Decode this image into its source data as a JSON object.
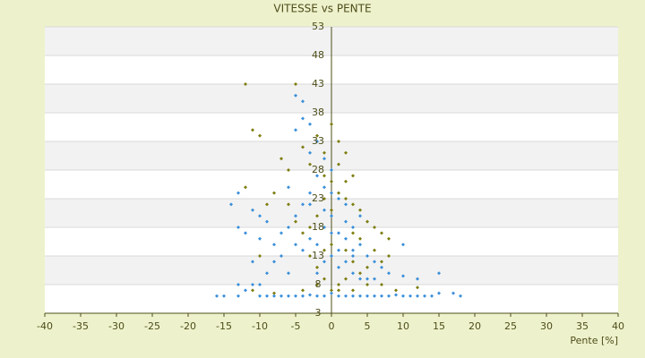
{
  "chart_data": {
    "type": "scatter",
    "title": "VITESSE vs PENTE",
    "x_label": "Pente [%]",
    "xlim": [
      -40,
      40
    ],
    "ylim": [
      3,
      53
    ],
    "xticks": [
      -40,
      -35,
      -30,
      -25,
      -20,
      -15,
      -10,
      -5,
      0,
      5,
      10,
      15,
      20,
      25,
      30,
      35,
      40
    ],
    "yticks": [
      3,
      8,
      13,
      18,
      23,
      28,
      33,
      38,
      43,
      48,
      53
    ],
    "grid": true,
    "series": [
      {
        "color": "#7d7d10",
        "x": [
          -12,
          -5,
          -11,
          -10,
          -7,
          -6,
          -4,
          -3,
          -2,
          0,
          1,
          2,
          -1,
          0,
          1,
          2,
          3,
          4,
          5,
          6,
          7,
          8,
          8,
          7,
          6,
          5,
          4,
          3,
          2,
          1,
          0,
          -1,
          -2,
          -3,
          -4,
          -5,
          -6,
          -8,
          -9,
          -12,
          -10,
          -11,
          -8,
          -4,
          -2,
          1,
          3,
          5,
          7,
          9,
          12,
          0,
          -1,
          2,
          3,
          1,
          -1,
          -2,
          -3,
          4,
          3,
          0,
          -1,
          2
        ],
        "values": [
          43,
          43,
          35,
          34,
          30,
          28,
          32,
          29,
          34,
          36,
          33,
          31,
          27,
          26,
          24,
          23,
          22,
          21,
          19,
          18,
          17,
          16,
          13,
          12,
          14,
          11,
          10,
          12,
          9,
          8,
          7,
          9,
          11,
          13,
          17,
          19,
          22,
          24,
          22,
          25,
          13,
          7,
          6.5,
          7,
          8,
          7,
          7,
          8,
          8,
          7,
          7.5,
          21,
          23,
          26,
          27,
          29,
          31,
          20,
          18,
          16,
          17,
          15,
          14,
          14
        ]
      },
      {
        "color": "#3a8fd9",
        "x": [
          -16,
          -15,
          -13,
          -12,
          -11,
          -10,
          -9,
          -8,
          -7,
          -6,
          -5,
          -4,
          -3,
          -2,
          -1,
          0,
          1,
          2,
          3,
          4,
          5,
          6,
          7,
          8,
          9,
          10,
          11,
          12,
          13,
          14,
          15,
          17,
          18,
          15,
          12,
          10,
          8,
          7,
          10,
          6,
          5,
          4,
          3,
          -5,
          -4,
          -3,
          -4,
          -5,
          -2,
          -3,
          -1,
          0,
          -2,
          -1,
          0,
          1,
          2,
          -3,
          -4,
          -5,
          -6,
          -7,
          -8,
          -9,
          -10,
          -11,
          -13,
          -14,
          -13,
          -12,
          -10,
          -8,
          -6,
          -9,
          -7,
          -4,
          -2,
          -1,
          0,
          1,
          2,
          3,
          4,
          2,
          1,
          0,
          -1,
          -2,
          3,
          4,
          5,
          -3,
          -5,
          -6,
          -3,
          0,
          1,
          2,
          -1,
          3,
          6,
          -11,
          -13,
          -10
        ],
        "values": [
          6,
          6,
          6,
          7,
          8,
          6,
          6,
          6,
          6,
          6,
          6,
          6,
          6.2,
          6,
          6,
          6.5,
          6,
          6,
          6,
          6,
          6,
          6,
          6,
          6,
          6.2,
          6,
          6,
          6,
          6,
          6,
          6.5,
          6.5,
          6,
          10,
          9,
          9.5,
          10,
          11,
          15,
          12,
          13,
          15,
          14,
          35,
          37,
          36,
          40,
          41,
          33,
          31,
          30,
          28,
          27,
          25,
          24,
          23,
          22,
          24,
          22,
          20,
          18,
          17,
          15,
          19,
          20,
          21,
          24,
          22,
          18,
          17,
          16,
          12,
          10,
          10,
          13,
          14,
          15,
          18,
          20,
          17,
          16,
          18,
          20,
          12,
          11,
          13,
          12,
          10,
          10,
          9,
          9,
          16,
          15,
          25,
          22,
          17,
          14,
          19,
          21,
          13,
          9,
          12,
          8,
          8
        ]
      }
    ]
  }
}
